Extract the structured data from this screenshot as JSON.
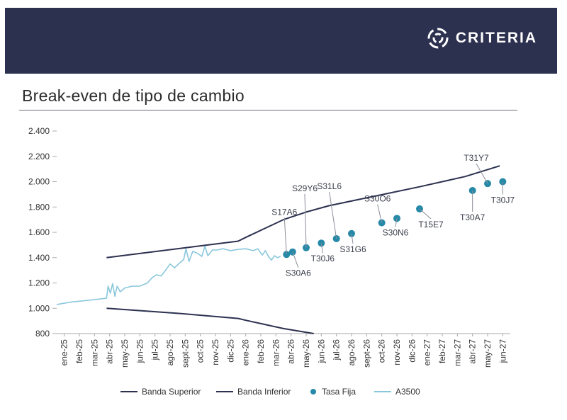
{
  "header": {
    "brand": "CRITERIA",
    "brand_color": "#2c3150",
    "logo_icon": "criteria-swirl-logo"
  },
  "title": "Break-even de tipo de cambio",
  "colors": {
    "banda": "#2c3150",
    "tasa_fija": "#2789a8",
    "a3500": "#8ac7dc",
    "axis": "#aaaaaa",
    "leader": "#8a8e98"
  },
  "chart_data": {
    "type": "line",
    "title": "Break-even de tipo de cambio",
    "xlabel": "",
    "ylabel": "",
    "ylim": [
      800,
      2400
    ],
    "yticks": [
      800,
      1000,
      1200,
      1400,
      1600,
      1800,
      2000,
      2200,
      2400
    ],
    "ytick_labels": [
      "800",
      "1.000",
      "1.200",
      "1.400",
      "1.600",
      "1.800",
      "2.000",
      "2.200",
      "2.400"
    ],
    "categories": [
      "ene-25",
      "feb-25",
      "mar-25",
      "abr-25",
      "may-25",
      "jun-25",
      "jul-25",
      "ago-25",
      "sept-25",
      "oct-25",
      "nov-25",
      "dic-25",
      "ene-26",
      "feb-26",
      "mar-26",
      "abr-26",
      "may-26",
      "jun-26",
      "jul-26",
      "ago-26",
      "sept-26",
      "oct-26",
      "nov-26",
      "dic-26",
      "ene-27",
      "feb-27",
      "mar-27",
      "abr-27",
      "may-27",
      "jun-27"
    ],
    "xlim": [
      0,
      30
    ],
    "series": [
      {
        "name": "Banda Superior",
        "type": "line",
        "points": [
          [
            3.3,
            1400
          ],
          [
            12,
            1530
          ],
          [
            12.5,
            1560
          ],
          [
            15,
            1700
          ],
          [
            16.5,
            1760
          ],
          [
            18,
            1810
          ],
          [
            21,
            1885
          ],
          [
            24,
            1960
          ],
          [
            27,
            2040
          ],
          [
            29.3,
            2125
          ]
        ]
      },
      {
        "name": "Banda Inferior",
        "type": "line",
        "points": [
          [
            3.3,
            1000
          ],
          [
            8,
            960
          ],
          [
            12,
            920
          ],
          [
            12.5,
            905
          ],
          [
            15,
            840
          ],
          [
            17,
            800
          ]
        ]
      },
      {
        "name": "Tasa Fija",
        "type": "scatter",
        "points": [
          {
            "label": "S17A6",
            "x": 15.2,
            "y": 1425
          },
          {
            "label": "S30A6",
            "x": 15.6,
            "y": 1445
          },
          {
            "label": "S29Y6",
            "x": 16.5,
            "y": 1478
          },
          {
            "label": "T30J6",
            "x": 17.5,
            "y": 1515
          },
          {
            "label": "S31L6",
            "x": 18.5,
            "y": 1550
          },
          {
            "label": "S31G6",
            "x": 19.5,
            "y": 1590
          },
          {
            "label": "S30O6",
            "x": 21.5,
            "y": 1675
          },
          {
            "label": "S30N6",
            "x": 22.5,
            "y": 1710
          },
          {
            "label": "T15E7",
            "x": 24,
            "y": 1785
          },
          {
            "label": "T30A7",
            "x": 27.5,
            "y": 1930
          },
          {
            "label": "T31Y7",
            "x": 28.5,
            "y": 1985
          },
          {
            "label": "T30J7",
            "x": 29.5,
            "y": 2000
          }
        ]
      },
      {
        "name": "A3500",
        "type": "line",
        "points": [
          [
            0,
            1030
          ],
          [
            1,
            1050
          ],
          [
            2,
            1062
          ],
          [
            3,
            1075
          ],
          [
            3.3,
            1080
          ],
          [
            3.4,
            1175
          ],
          [
            3.55,
            1120
          ],
          [
            3.7,
            1195
          ],
          [
            3.85,
            1095
          ],
          [
            4,
            1175
          ],
          [
            4.2,
            1130
          ],
          [
            4.5,
            1160
          ],
          [
            5,
            1175
          ],
          [
            5.5,
            1175
          ],
          [
            6,
            1200
          ],
          [
            6.3,
            1240
          ],
          [
            6.6,
            1265
          ],
          [
            6.9,
            1255
          ],
          [
            7.2,
            1300
          ],
          [
            7.5,
            1350
          ],
          [
            7.8,
            1320
          ],
          [
            8.1,
            1355
          ],
          [
            8.4,
            1385
          ],
          [
            8.55,
            1470
          ],
          [
            8.75,
            1370
          ],
          [
            9,
            1450
          ],
          [
            9.3,
            1435
          ],
          [
            9.6,
            1410
          ],
          [
            9.8,
            1490
          ],
          [
            10,
            1415
          ],
          [
            10.3,
            1460
          ],
          [
            10.6,
            1460
          ],
          [
            11,
            1470
          ],
          [
            11.5,
            1455
          ],
          [
            12,
            1465
          ],
          [
            12.5,
            1470
          ],
          [
            13,
            1455
          ],
          [
            13.3,
            1470
          ],
          [
            13.6,
            1420
          ],
          [
            13.8,
            1455
          ],
          [
            14,
            1410
          ],
          [
            14.2,
            1380
          ],
          [
            14.4,
            1415
          ],
          [
            14.6,
            1400
          ],
          [
            14.8,
            1410
          ]
        ]
      }
    ],
    "legend": [
      {
        "name": "Banda Superior",
        "marker": "line"
      },
      {
        "name": "Banda Inferior",
        "marker": "line"
      },
      {
        "name": "Tasa Fija",
        "marker": "dot"
      },
      {
        "name": "A3500",
        "marker": "line"
      }
    ],
    "legend_position": "bottom"
  }
}
